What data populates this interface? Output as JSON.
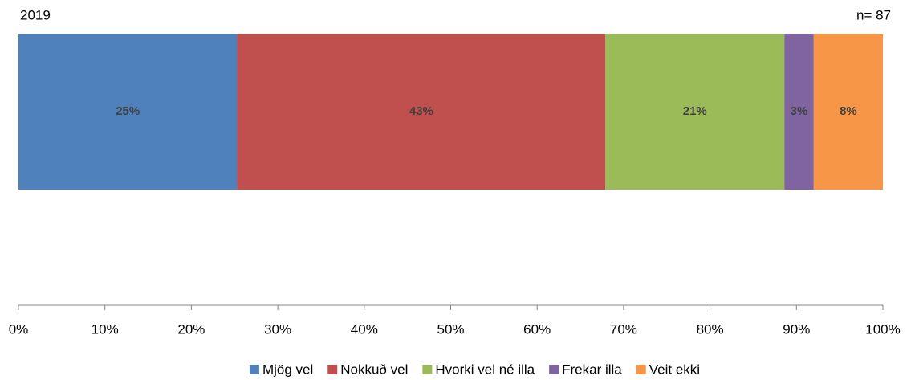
{
  "chart_data": {
    "type": "bar",
    "orientation": "horizontal",
    "stacked": true,
    "categories": [
      "2019"
    ],
    "annotation": "n= 87",
    "series": [
      {
        "name": "Mjög vel",
        "color": "#4f81bd",
        "values": [
          25.3
        ],
        "value_labels": [
          "25%"
        ]
      },
      {
        "name": "Nokkuð vel",
        "color": "#c0504d",
        "values": [
          42.6
        ],
        "value_labels": [
          "43%"
        ]
      },
      {
        "name": "Hvorki vel né illa",
        "color": "#9bbb59",
        "values": [
          20.7
        ],
        "value_labels": [
          "21%"
        ]
      },
      {
        "name": "Frekar illa",
        "color": "#8064a2",
        "values": [
          3.4
        ],
        "value_labels": [
          "3%"
        ]
      },
      {
        "name": "Veit ekki",
        "color": "#f79646",
        "values": [
          8.0
        ],
        "value_labels": [
          "8%"
        ]
      }
    ],
    "xlim": [
      0,
      100
    ],
    "xticks": [
      {
        "value": 0,
        "label": "0%"
      },
      {
        "value": 10,
        "label": "10%"
      },
      {
        "value": 20,
        "label": "20%"
      },
      {
        "value": 30,
        "label": "30%"
      },
      {
        "value": 40,
        "label": "40%"
      },
      {
        "value": 50,
        "label": "50%"
      },
      {
        "value": 60,
        "label": "60%"
      },
      {
        "value": 70,
        "label": "70%"
      },
      {
        "value": 80,
        "label": "80%"
      },
      {
        "value": 90,
        "label": "90%"
      },
      {
        "value": 100,
        "label": "100%"
      }
    ],
    "legend": "bottom",
    "grid": false
  }
}
